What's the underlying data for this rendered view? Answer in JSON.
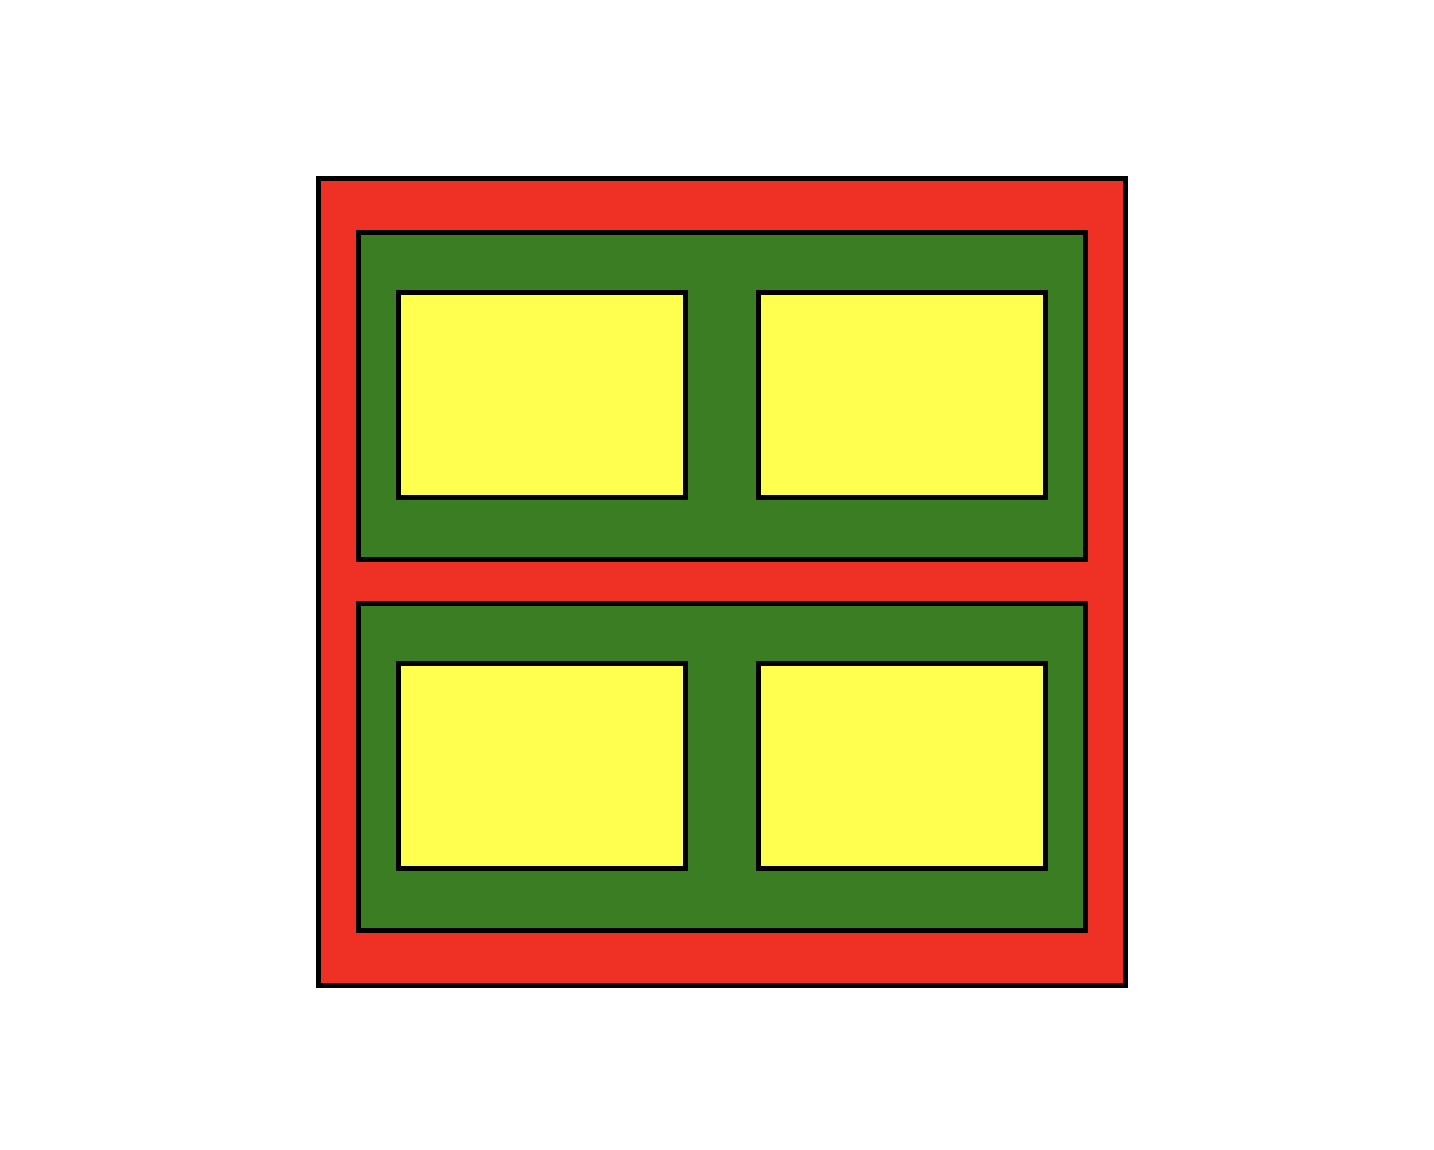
{
  "colors": {
    "background": "#ffffff",
    "border": "#000000",
    "outer": "#ee3124",
    "inner": "#3a7d22",
    "cell": "#ffff4f"
  },
  "boxes": {
    "outer": "outer-box",
    "rows": [
      "row-top",
      "row-bottom"
    ],
    "cells": [
      "cell-tl",
      "cell-tr",
      "cell-bl",
      "cell-br"
    ]
  }
}
